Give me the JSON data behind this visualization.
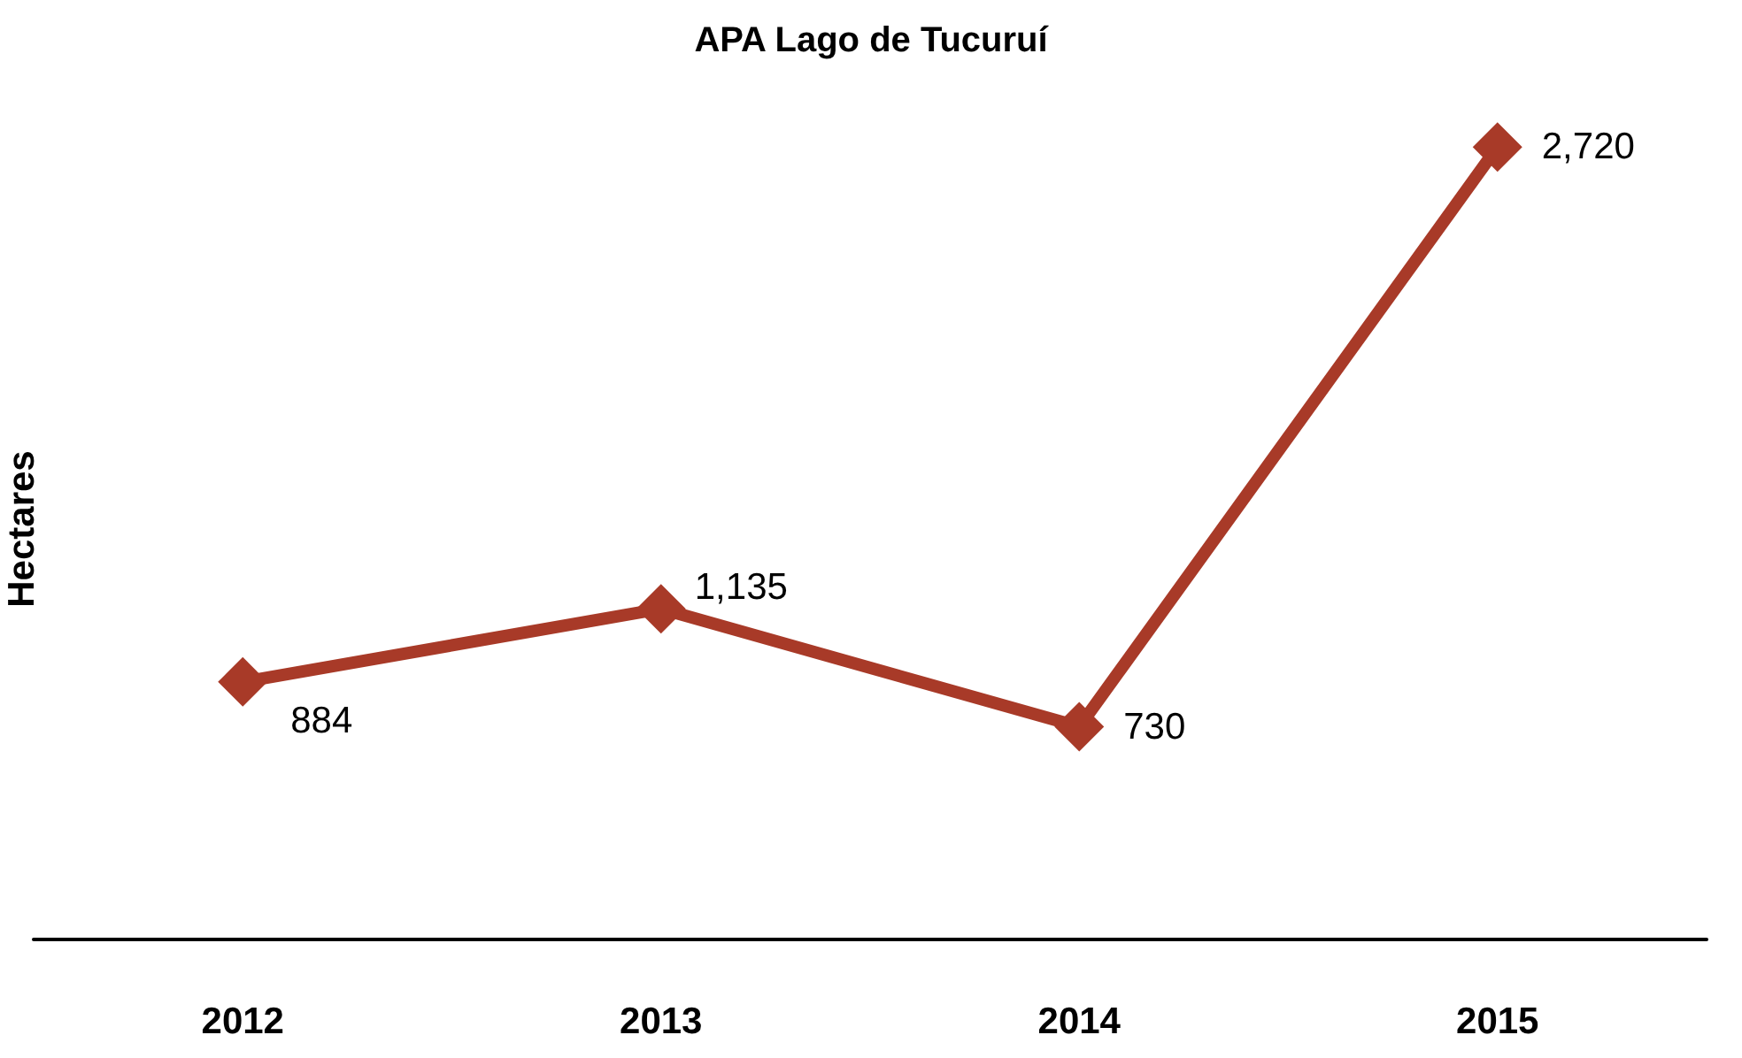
{
  "chart_data": {
    "type": "line",
    "title": "APA Lago de Tucuruí",
    "ylabel": "Hectares",
    "categories": [
      "2012",
      "2013",
      "2014",
      "2015"
    ],
    "series": [
      {
        "color": "#a83a28",
        "values": [
          884,
          1135,
          730,
          2720
        ],
        "value_labels": [
          "884",
          "1,135",
          "730",
          "2,720"
        ]
      }
    ],
    "marker": "diamond",
    "line_style": "solid"
  }
}
